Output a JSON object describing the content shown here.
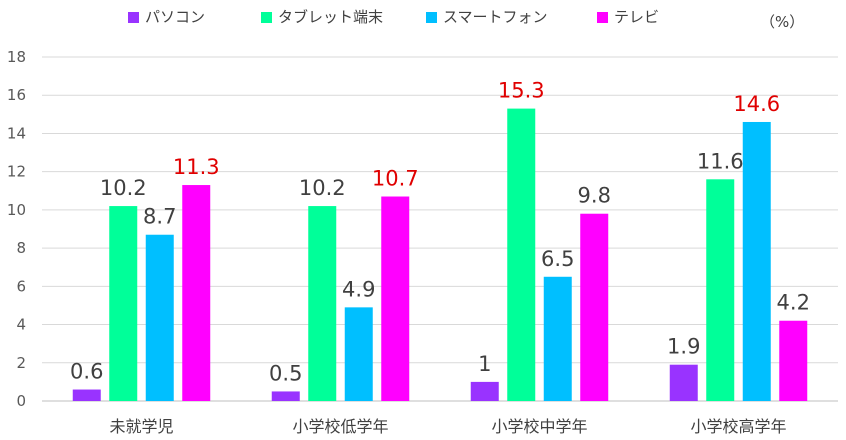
{
  "chart_data": {
    "type": "bar",
    "unit_label": "（%）",
    "categories": [
      "未就学児",
      "小学校低学年",
      "小学校中学年",
      "小学校高学年"
    ],
    "series": [
      {
        "name": "パソコン",
        "color": "#9933ff",
        "values": [
          0.6,
          0.5,
          1,
          1.9
        ]
      },
      {
        "name": "タブレット端末",
        "color": "#00ff99",
        "values": [
          10.2,
          10.2,
          15.3,
          11.6
        ]
      },
      {
        "name": "スマートフォン",
        "color": "#00bfff",
        "values": [
          8.7,
          4.9,
          6.5,
          14.6
        ]
      },
      {
        "name": "テレビ",
        "color": "#ff00ff",
        "values": [
          11.3,
          10.7,
          9.8,
          4.2
        ]
      }
    ],
    "data_label_color": "#404040",
    "highlight_label_color": "#e00000",
    "highlighted_series_by_category": [
      3,
      3,
      1,
      2
    ],
    "ylim": [
      0,
      18
    ],
    "yticks": [
      0,
      2,
      4,
      6,
      8,
      10,
      12,
      14,
      16,
      18
    ],
    "grid": true,
    "legend_position": "top"
  }
}
